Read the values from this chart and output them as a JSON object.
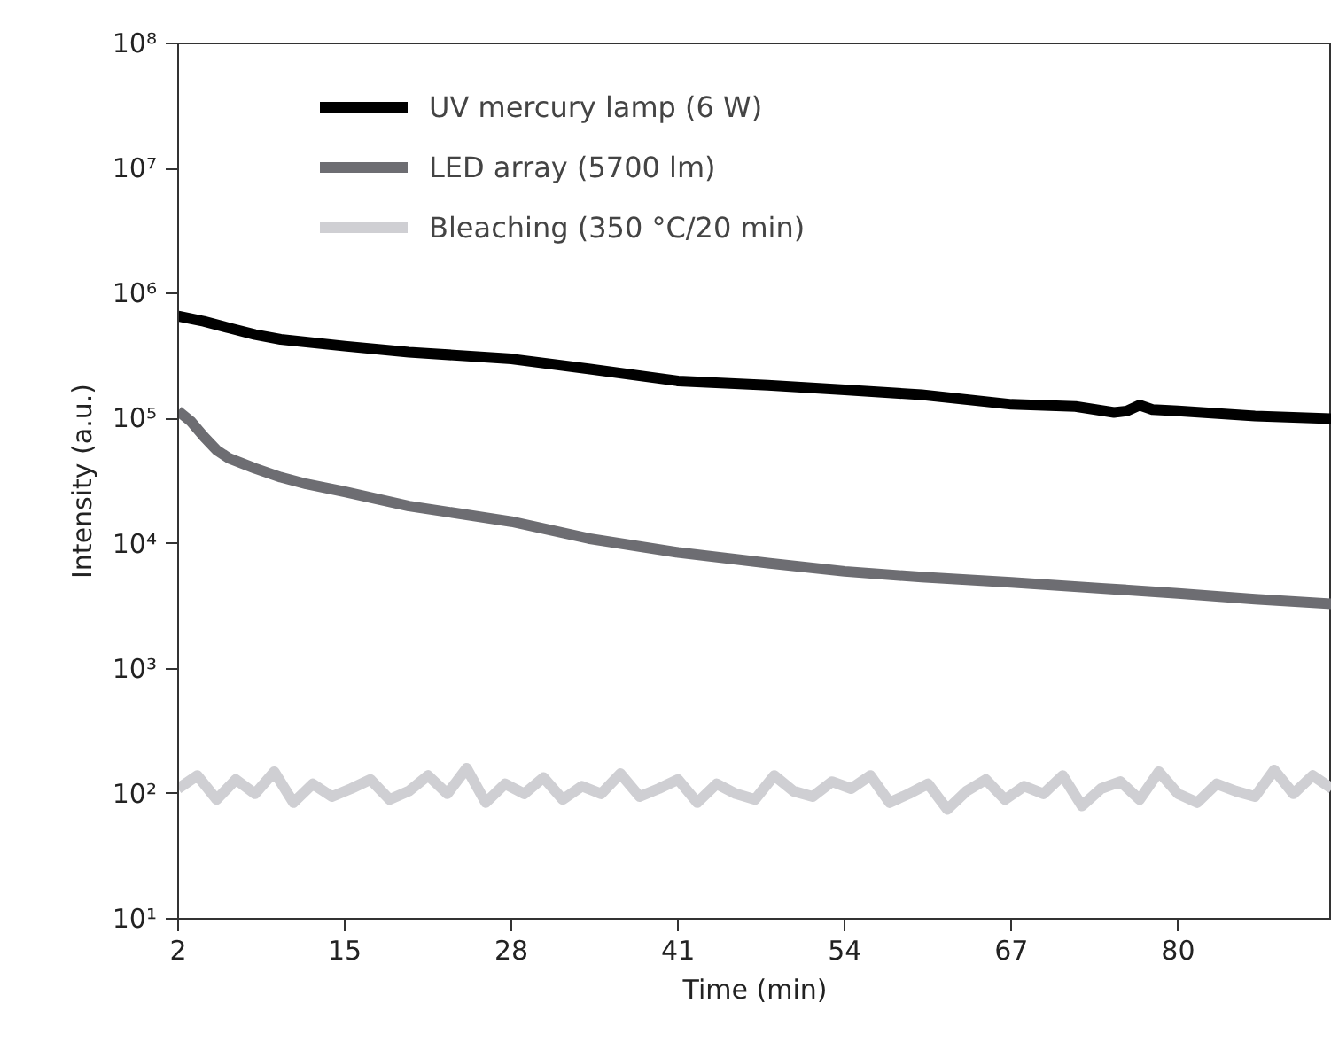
{
  "chart_data": {
    "type": "line",
    "xlabel": "Time (min)",
    "ylabel": "Intensity (a.u.)",
    "log": "y",
    "xlim": [
      2,
      92
    ],
    "xticks": [
      2,
      15,
      28,
      41,
      54,
      67,
      80
    ],
    "ylim": [
      10,
      100000000
    ],
    "yticks": [
      {
        "value": 10,
        "label": "10¹"
      },
      {
        "value": 100,
        "label": "10²"
      },
      {
        "value": 1000,
        "label": "10³"
      },
      {
        "value": 10000,
        "label": "10⁴"
      },
      {
        "value": 100000,
        "label": "10⁵"
      },
      {
        "value": 1000000,
        "label": "10⁶"
      },
      {
        "value": 10000000,
        "label": "10⁷"
      },
      {
        "value": 100000000,
        "label": "10⁸"
      }
    ],
    "grid": false,
    "legend": "top left",
    "marker": "none",
    "line_style": "solid",
    "series": [
      {
        "name": "UV mercury lamp (6 W)",
        "color": "#000000",
        "x": [
          2,
          4,
          6,
          8,
          10,
          15,
          20,
          28,
          34,
          41,
          48,
          54,
          60,
          67,
          72,
          75,
          76,
          77,
          78,
          80,
          86,
          92
        ],
        "values": [
          660000,
          600000,
          530000,
          470000,
          430000,
          380000,
          340000,
          300000,
          250000,
          200000,
          185000,
          170000,
          155000,
          130000,
          125000,
          112000,
          115000,
          128000,
          118000,
          115000,
          105000,
          100000
        ]
      },
      {
        "name": "LED array (5700 lm)",
        "color": "#6d6d72",
        "x": [
          2,
          3,
          4,
          5,
          6,
          8,
          10,
          12,
          15,
          20,
          28,
          34,
          41,
          48,
          54,
          60,
          67,
          74,
          80,
          86,
          92
        ],
        "values": [
          115000,
          95000,
          72000,
          56000,
          48000,
          40000,
          34000,
          30000,
          26000,
          20000,
          15000,
          11000,
          8500,
          7000,
          6000,
          5400,
          4900,
          4400,
          4000,
          3600,
          3300
        ]
      },
      {
        "name": "Bleaching (350 °C/20 min)",
        "color": "#cfcfd3",
        "x": [
          2,
          3.5,
          5,
          6.5,
          8,
          9.5,
          11,
          12.5,
          14,
          15.5,
          17,
          18.5,
          20,
          21.5,
          23,
          24.5,
          26,
          27.5,
          29,
          30.5,
          32,
          33.5,
          35,
          36.5,
          38,
          39.5,
          41,
          42.5,
          44,
          45.5,
          47,
          48.5,
          50,
          51.5,
          53,
          54.5,
          56,
          57.5,
          59,
          60.5,
          62,
          63.5,
          65,
          66.5,
          68,
          69.5,
          71,
          72.5,
          74,
          75.5,
          77,
          78.5,
          80,
          81.5,
          83,
          84.5,
          86,
          87.5,
          89,
          90.5,
          92
        ],
        "values": [
          110,
          140,
          90,
          130,
          100,
          150,
          85,
          120,
          95,
          110,
          130,
          90,
          105,
          140,
          100,
          160,
          85,
          120,
          100,
          135,
          90,
          115,
          100,
          145,
          95,
          110,
          130,
          85,
          120,
          100,
          90,
          140,
          105,
          95,
          125,
          110,
          140,
          85,
          100,
          120,
          75,
          105,
          130,
          90,
          115,
          100,
          140,
          80,
          110,
          125,
          90,
          150,
          100,
          85,
          120,
          105,
          95,
          155,
          100,
          140,
          110
        ]
      }
    ]
  }
}
